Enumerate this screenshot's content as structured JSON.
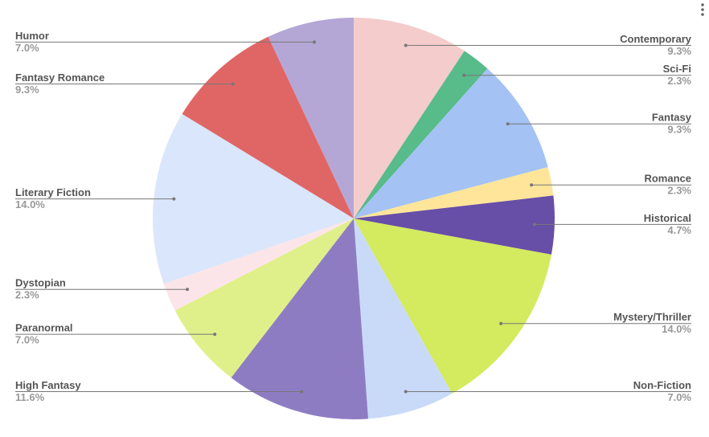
{
  "chart_data": {
    "type": "pie",
    "categories": [
      "Contemporary",
      "Sci-Fi",
      "Fantasy",
      "Romance",
      "Historical",
      "Mystery/Thriller",
      "Non-Fiction",
      "High Fantasy",
      "Paranormal",
      "Dystopian",
      "Literary Fiction",
      "Fantasy Romance",
      "Humor"
    ],
    "values": [
      9.3,
      2.3,
      9.3,
      2.3,
      4.7,
      14.0,
      7.0,
      11.6,
      7.0,
      2.3,
      14.0,
      9.3,
      7.0
    ],
    "value_labels": [
      "9.3%",
      "2.3%",
      "9.3%",
      "2.3%",
      "4.7%",
      "14.0%",
      "7.0%",
      "11.6%",
      "7.0%",
      "2.3%",
      "14.0%",
      "9.3%",
      "7.0%"
    ],
    "colors": [
      "#f4cccc",
      "#57bb8a",
      "#a4c2f4",
      "#ffe599",
      "#674ea7",
      "#d4ea5f",
      "#c9daf8",
      "#8e7cc3",
      "#dff08a",
      "#fce5e8",
      "#dae6fb",
      "#e06666",
      "#b4a7d6"
    ]
  }
}
